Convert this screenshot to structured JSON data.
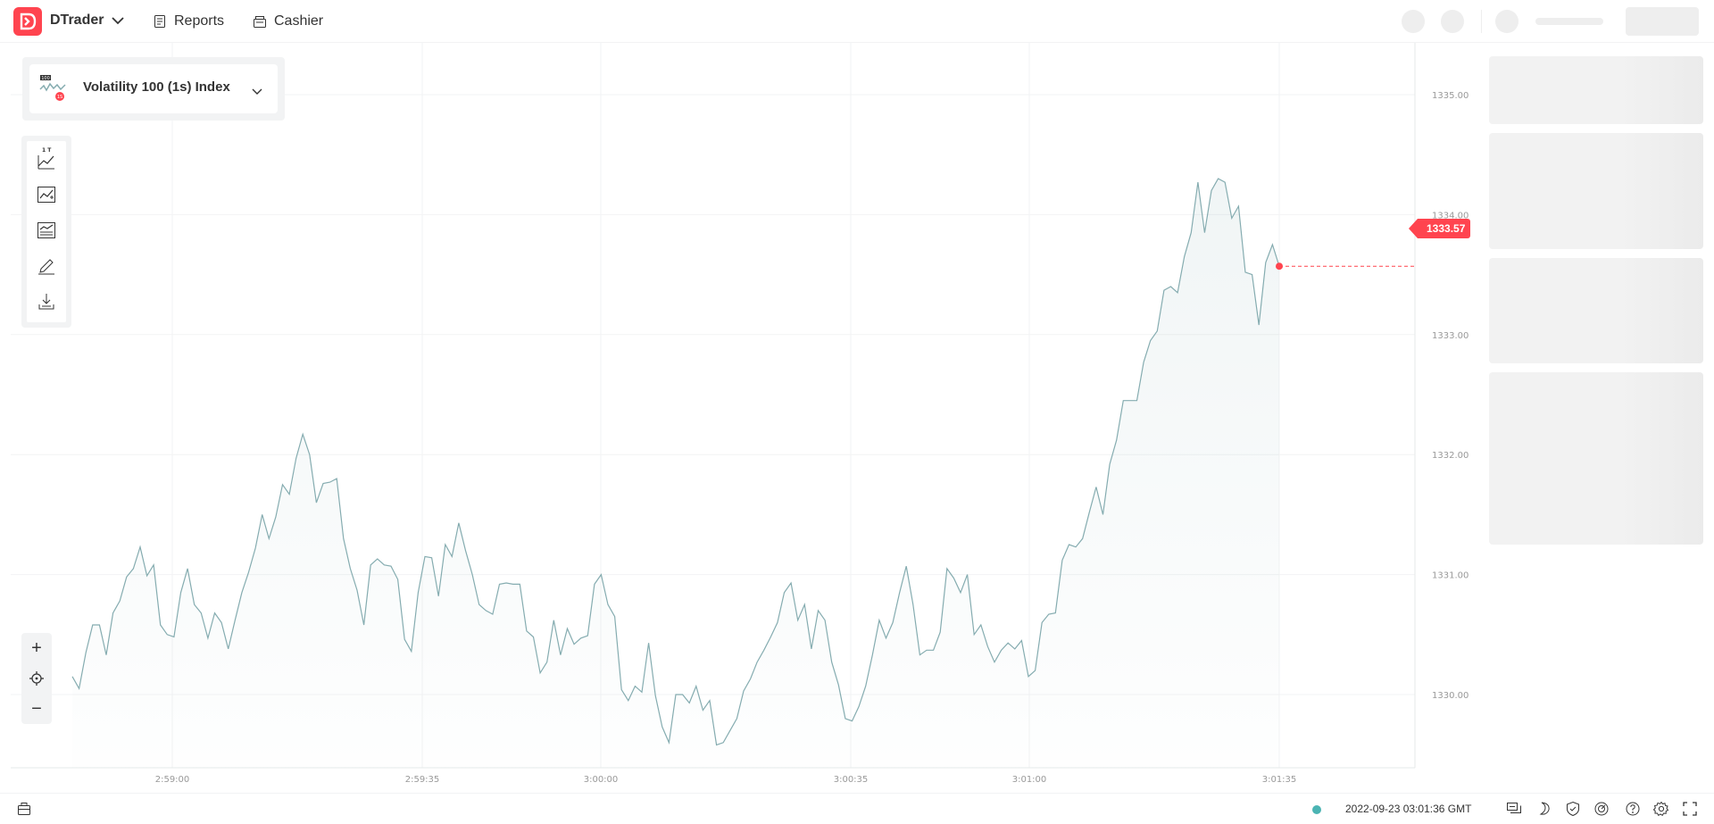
{
  "header": {
    "app_name": "DTrader",
    "nav": [
      {
        "label": "Reports",
        "icon": "reports-icon"
      },
      {
        "label": "Cashier",
        "icon": "cashier-icon"
      }
    ]
  },
  "market": {
    "name": "Volatility 100 (1s) Index",
    "icon": "volatility-index-icon",
    "icon_badge": "1S",
    "icon_number": "100"
  },
  "toolbar": {
    "chart_type_badge": "1 T",
    "tools": [
      "chart-type-icon",
      "indicators-icon",
      "templates-icon",
      "drawing-tools-icon",
      "download-icon"
    ]
  },
  "zoom": {
    "in": "+",
    "reset": "crosshair-icon",
    "out": "−"
  },
  "current_price": "1333.57",
  "footer": {
    "server_time": "2022-09-23 03:01:36 GMT",
    "icons": [
      "chat-icon",
      "dark-mode-icon",
      "shield-icon",
      "responsible-trading-icon",
      "help-icon",
      "settings-icon",
      "fullscreen-icon"
    ]
  },
  "colors": {
    "brand": "#ff444f",
    "line": "#85acb0",
    "status": "#4bb4b3"
  },
  "chart_data": {
    "type": "area",
    "title": "",
    "xlabel": "",
    "ylabel": "",
    "ylim": [
      1329.0,
      1335.5
    ],
    "y_ticks": [
      "1335.00",
      "1334.00",
      "1333.00",
      "1332.00",
      "1331.00",
      "1330.00"
    ],
    "x_ticks": [
      "2:59:00",
      "2:59:35",
      "3:00:00",
      "3:00:35",
      "3:01:00",
      "3:01:35"
    ],
    "x_start": "2:58:46",
    "x_end": "3:01:35",
    "y": [
      1330.15,
      1330.05,
      1330.35,
      1330.58,
      1330.58,
      1330.33,
      1330.68,
      1330.78,
      1330.98,
      1331.05,
      1331.23,
      1330.99,
      1331.08,
      1330.58,
      1330.5,
      1330.48,
      1330.85,
      1331.05,
      1330.75,
      1330.68,
      1330.47,
      1330.68,
      1330.6,
      1330.38,
      1330.62,
      1330.85,
      1331.02,
      1331.22,
      1331.5,
      1331.3,
      1331.48,
      1331.75,
      1331.67,
      1331.97,
      1332.17,
      1332.0,
      1331.6,
      1331.76,
      1331.77,
      1331.8,
      1331.3,
      1331.05,
      1330.87,
      1330.58,
      1331.08,
      1331.13,
      1331.08,
      1331.07,
      1330.96,
      1330.46,
      1330.36,
      1330.85,
      1331.15,
      1331.14,
      1330.82,
      1331.25,
      1331.15,
      1331.43,
      1331.2,
      1331.0,
      1330.75,
      1330.7,
      1330.67,
      1330.92,
      1330.93,
      1330.92,
      1330.92,
      1330.53,
      1330.48,
      1330.18,
      1330.27,
      1330.62,
      1330.33,
      1330.55,
      1330.42,
      1330.47,
      1330.49,
      1330.92,
      1331.0,
      1330.75,
      1330.65,
      1330.04,
      1329.95,
      1330.07,
      1330.02,
      1330.43,
      1329.99,
      1329.73,
      1329.6,
      1330.0,
      1330.0,
      1329.93,
      1330.07,
      1329.87,
      1329.95,
      1329.58,
      1329.6,
      1329.7,
      1329.8,
      1330.03,
      1330.13,
      1330.27,
      1330.37,
      1330.48,
      1330.6,
      1330.85,
      1330.93,
      1330.62,
      1330.75,
      1330.38,
      1330.7,
      1330.62,
      1330.27,
      1330.08,
      1329.8,
      1329.78,
      1329.9,
      1330.07,
      1330.33,
      1330.62,
      1330.47,
      1330.6,
      1330.85,
      1331.07,
      1330.75,
      1330.33,
      1330.37,
      1330.37,
      1330.52,
      1331.05,
      1330.97,
      1330.85,
      1331.0,
      1330.5,
      1330.58,
      1330.4,
      1330.27,
      1330.37,
      1330.43,
      1330.38,
      1330.45,
      1330.15,
      1330.2,
      1330.6,
      1330.67,
      1330.68,
      1331.12,
      1331.25,
      1331.23,
      1331.3,
      1331.52,
      1331.73,
      1331.5,
      1331.92,
      1332.12,
      1332.45,
      1332.45,
      1332.45,
      1332.77,
      1332.95,
      1333.03,
      1333.37,
      1333.4,
      1333.35,
      1333.65,
      1333.85,
      1334.27,
      1333.85,
      1334.2,
      1334.3,
      1334.27,
      1333.97,
      1334.07,
      1333.52,
      1333.5,
      1333.08,
      1333.6,
      1333.75,
      1333.57
    ]
  }
}
